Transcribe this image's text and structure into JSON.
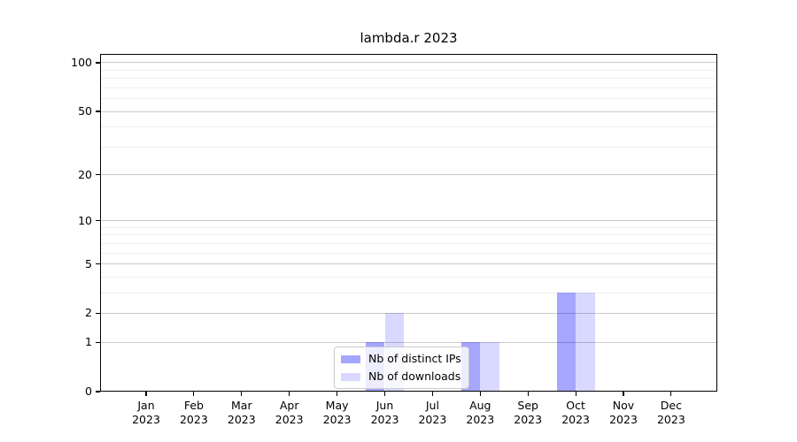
{
  "figure": {
    "background": "#ffffff",
    "text_color": "#000000",
    "spine_color": "#000000"
  },
  "chart_data": {
    "type": "bar",
    "title": "lambda.r 2023",
    "xlabel": "",
    "ylabel": "",
    "year": "2023",
    "categories": [
      "Jan",
      "Feb",
      "Mar",
      "Apr",
      "May",
      "Jun",
      "Jul",
      "Aug",
      "Sep",
      "Oct",
      "Nov",
      "Dec"
    ],
    "series": [
      {
        "name": "Nb of distinct IPs",
        "color_hex": "#a6a6fa",
        "color_rgba": "rgba(0,0,255,0.35)",
        "values": [
          0,
          0,
          0,
          0,
          0,
          1,
          0,
          1,
          0,
          3,
          0,
          0
        ]
      },
      {
        "name": "Nb of downloads",
        "color_hex": "#d9d9fc",
        "color_rgba": "rgba(0,0,255,0.15)",
        "values": [
          0,
          0,
          0,
          0,
          0,
          2,
          0,
          1,
          0,
          3,
          0,
          0
        ]
      }
    ],
    "y_scale": "log1p",
    "ylim": [
      0,
      113.3
    ],
    "yticks_major": [
      0,
      1,
      2,
      5,
      10,
      20,
      50,
      100
    ],
    "yticks_minor": [
      3,
      4,
      6,
      7,
      8,
      9,
      30,
      40,
      60,
      70,
      80,
      90
    ],
    "grid": {
      "major_color": "#cbcbcb",
      "minor_color": "#efefef",
      "on": true
    },
    "legend": {
      "position": "bottom-center",
      "background": "rgba(255,255,255,0.8)",
      "border_color": "#cbcbcb"
    }
  }
}
